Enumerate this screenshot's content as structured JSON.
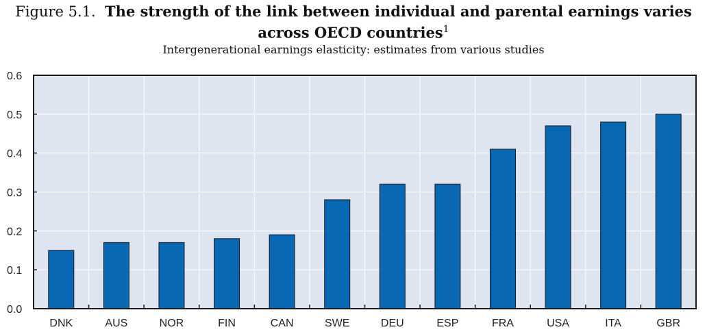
{
  "figure_label": "Figure 5.1.",
  "chart_data": {
    "type": "bar",
    "title_line1": "The strength of the link between individual and parental earnings varies",
    "title_line2": "across OECD countries",
    "title_footnote": "1",
    "subtitle": "Intergenerational earnings elasticity: estimates from various studies",
    "categories": [
      "DNK",
      "AUS",
      "NOR",
      "FIN",
      "CAN",
      "SWE",
      "DEU",
      "ESP",
      "FRA",
      "USA",
      "ITA",
      "GBR"
    ],
    "values": [
      0.15,
      0.17,
      0.17,
      0.18,
      0.19,
      0.28,
      0.32,
      0.32,
      0.41,
      0.47,
      0.48,
      0.5
    ],
    "ylim": [
      0,
      0.6
    ],
    "yticks": [
      "0.0",
      "0.1",
      "0.2",
      "0.3",
      "0.4",
      "0.5",
      "0.6"
    ],
    "xlabel": "",
    "ylabel": "",
    "grid": true,
    "colors": {
      "bar": "#0868b4",
      "plot_bg": "#dfe4f1",
      "border": "#1a1a1a"
    }
  }
}
